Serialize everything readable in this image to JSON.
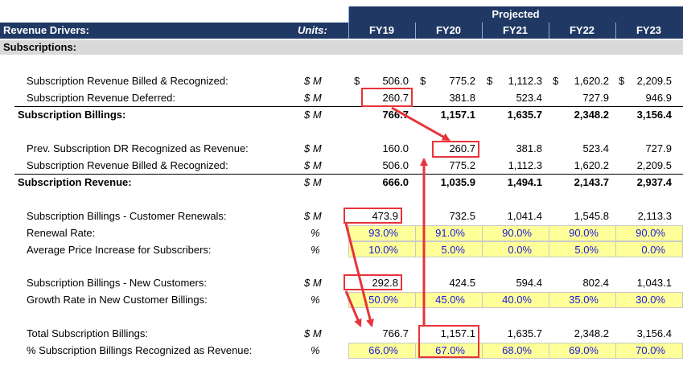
{
  "header": {
    "projected": "Projected",
    "title": "Revenue Drivers:",
    "units": "Units:",
    "years": [
      "FY19",
      "FY20",
      "FY21",
      "FY22",
      "FY23"
    ]
  },
  "section": "Subscriptions:",
  "rows": {
    "billed_recognized": {
      "label": "Subscription Revenue Billed & Recognized:",
      "unit": "$ M",
      "dollar": "$",
      "values": [
        "506.0",
        "775.2",
        "1,112.3",
        "1,620.2",
        "2,209.5"
      ]
    },
    "deferred": {
      "label": "Subscription Revenue Deferred:",
      "unit": "$ M",
      "values": [
        "260.7",
        "381.8",
        "523.4",
        "727.9",
        "946.9"
      ]
    },
    "billings": {
      "label": "Subscription Billings:",
      "unit": "$ M",
      "values": [
        "766.7",
        "1,157.1",
        "1,635.7",
        "2,348.2",
        "3,156.4"
      ]
    },
    "prev_dr": {
      "label": "Prev. Subscription DR Recognized as Revenue:",
      "unit": "$ M",
      "values": [
        "160.0",
        "260.7",
        "381.8",
        "523.4",
        "727.9"
      ]
    },
    "billed_recognized2": {
      "label": "Subscription Revenue Billed & Recognized:",
      "unit": "$ M",
      "values": [
        "506.0",
        "775.2",
        "1,112.3",
        "1,620.2",
        "2,209.5"
      ]
    },
    "revenue": {
      "label": "Subscription Revenue:",
      "unit": "$ M",
      "values": [
        "666.0",
        "1,035.9",
        "1,494.1",
        "2,143.7",
        "2,937.4"
      ]
    },
    "renewals": {
      "label": "Subscription Billings - Customer Renewals:",
      "unit": "$ M",
      "values": [
        "473.9",
        "732.5",
        "1,041.4",
        "1,545.8",
        "2,113.3"
      ]
    },
    "renewal_rate": {
      "label": "Renewal Rate:",
      "unit": "%",
      "values": [
        "93.0%",
        "91.0%",
        "90.0%",
        "90.0%",
        "90.0%"
      ]
    },
    "price_increase": {
      "label": "Average Price Increase for Subscribers:",
      "unit": "%",
      "values": [
        "10.0%",
        "5.0%",
        "0.0%",
        "5.0%",
        "0.0%"
      ]
    },
    "new_customers": {
      "label": "Subscription Billings - New Customers:",
      "unit": "$ M",
      "values": [
        "292.8",
        "424.5",
        "594.4",
        "802.4",
        "1,043.1"
      ]
    },
    "growth_rate": {
      "label": "Growth Rate in New Customer Billings:",
      "unit": "%",
      "values": [
        "50.0%",
        "45.0%",
        "40.0%",
        "35.0%",
        "30.0%"
      ]
    },
    "total_billings": {
      "label": "Total Subscription Billings:",
      "unit": "$ M",
      "values": [
        "766.7",
        "1,157.1",
        "1,635.7",
        "2,348.2",
        "3,156.4"
      ]
    },
    "pct_recognized": {
      "label": "% Subscription Billings Recognized as Revenue:",
      "unit": "%",
      "values": [
        "66.0%",
        "67.0%",
        "68.0%",
        "69.0%",
        "70.0%"
      ]
    }
  },
  "colors": {
    "header_bg": "#1f3864",
    "input_bg": "#ffff99",
    "input_text": "#1a1adb",
    "annotation": "#e8333a"
  }
}
